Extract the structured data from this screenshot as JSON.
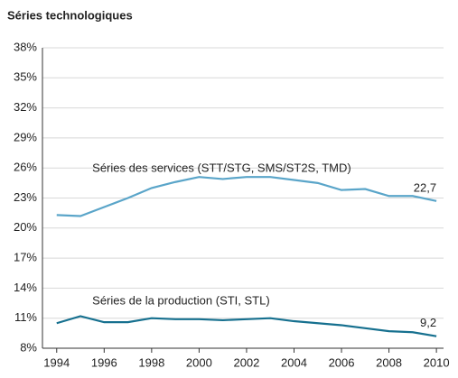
{
  "chart_data": {
    "type": "line",
    "title": "Séries technologiques",
    "x": [
      1994,
      1995,
      1996,
      1997,
      1998,
      1999,
      2000,
      2001,
      2002,
      2003,
      2004,
      2005,
      2006,
      2007,
      2008,
      2009,
      2010
    ],
    "series": [
      {
        "name": "Séries des services (STT/STG, SMS/ST2S, TMD)",
        "color": "#5aa5c9",
        "values": [
          21.3,
          21.2,
          22.1,
          23.0,
          24.0,
          24.6,
          25.1,
          24.9,
          25.1,
          25.1,
          24.8,
          24.5,
          23.8,
          23.9,
          23.2,
          23.2,
          22.7
        ],
        "value_labels": [
          null,
          null,
          null,
          null,
          null,
          null,
          null,
          null,
          null,
          null,
          null,
          null,
          null,
          null,
          null,
          null,
          "22,7"
        ]
      },
      {
        "name": "Séries de la production (STI, STL)",
        "color": "#16708f",
        "values": [
          10.5,
          11.2,
          10.6,
          10.6,
          11.0,
          10.9,
          10.9,
          10.8,
          10.9,
          11.0,
          10.7,
          10.5,
          10.3,
          10.0,
          9.7,
          9.6,
          9.2
        ],
        "value_labels": [
          null,
          null,
          null,
          null,
          null,
          null,
          null,
          null,
          null,
          null,
          null,
          null,
          null,
          null,
          null,
          null,
          "9,2"
        ]
      }
    ],
    "xlim": [
      1993.4,
      2010.3
    ],
    "xticks": [
      1994,
      1996,
      1998,
      2000,
      2002,
      2004,
      2006,
      2008,
      2010
    ],
    "ylim": [
      8,
      38
    ],
    "yticks": [
      {
        "value": 8,
        "label": "8%"
      },
      {
        "value": 11,
        "label": "11%"
      },
      {
        "value": 14,
        "label": "14%"
      },
      {
        "value": 17,
        "label": "17%"
      },
      {
        "value": 20,
        "label": "20%"
      },
      {
        "value": 23,
        "label": "23%"
      },
      {
        "value": 26,
        "label": "26%"
      },
      {
        "value": 29,
        "label": "29%"
      },
      {
        "value": 32,
        "label": "32%"
      },
      {
        "value": 35,
        "label": "35%"
      },
      {
        "value": 38,
        "label": "38%"
      }
    ],
    "grid": true
  }
}
